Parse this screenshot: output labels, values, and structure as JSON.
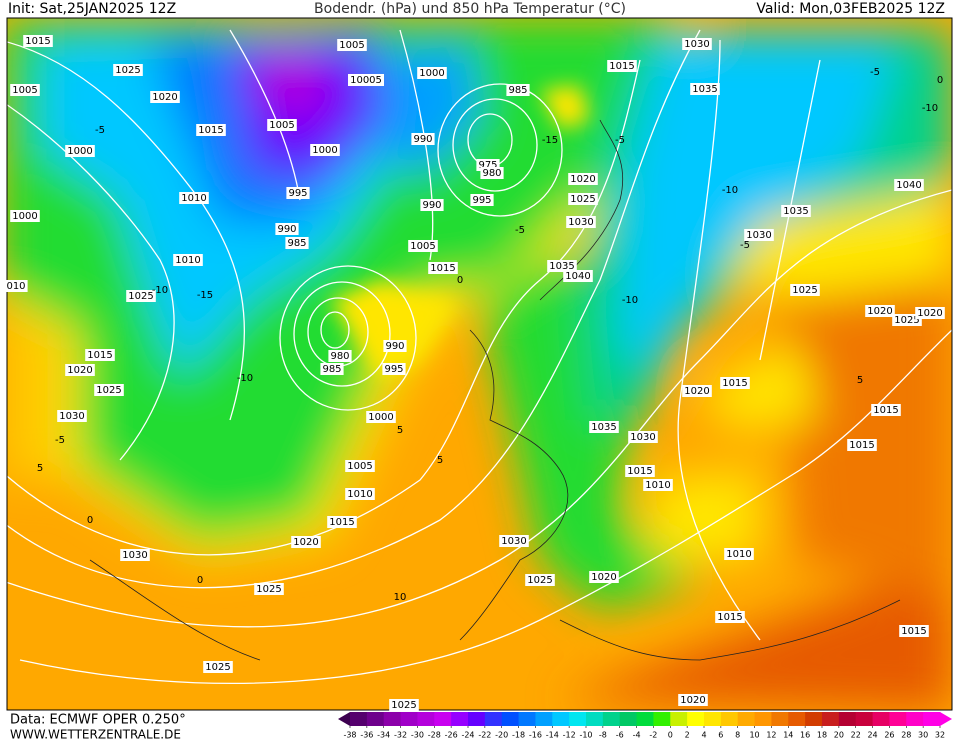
{
  "header": {
    "init": "Init: Sat,25JAN2025 12Z",
    "title": "Bodendr. (hPa) und 850 hPa Temperatur (°C)",
    "valid": "Valid: Mon,03FEB2025 12Z"
  },
  "footer": {
    "data": "Data: ECMWF OPER 0.250°",
    "site": "WWW.WETTERZENTRALE.DE"
  },
  "colorbar": {
    "ticks": [
      -38,
      -36,
      -34,
      -32,
      -30,
      -28,
      -26,
      -24,
      -22,
      -20,
      -18,
      -16,
      -14,
      -12,
      -10,
      -8,
      -6,
      -4,
      -2,
      0,
      2,
      4,
      6,
      8,
      10,
      12,
      14,
      16,
      18,
      20,
      22,
      24,
      26,
      28,
      30,
      32
    ],
    "colors": [
      "#3c0050",
      "#55006e",
      "#6e008c",
      "#8c00aa",
      "#a000c8",
      "#b400dc",
      "#c800f0",
      "#9600ff",
      "#6400ff",
      "#3232ff",
      "#0050ff",
      "#0078ff",
      "#00a0ff",
      "#00c8ff",
      "#00e6f0",
      "#00dcc0",
      "#00d28c",
      "#00c864",
      "#00dc3c",
      "#32f000",
      "#c8f000",
      "#ffff00",
      "#ffe600",
      "#ffc800",
      "#ffaa00",
      "#ff9600",
      "#f07800",
      "#e65a00",
      "#d23c00",
      "#c81e1e",
      "#b40032",
      "#c8003c",
      "#e60064",
      "#ff0096",
      "#ff00c8",
      "#ff00e6"
    ]
  },
  "pressure_labels": [
    "1015",
    "1025",
    "1005",
    "1020",
    "1015",
    "1005",
    "1000",
    "1000",
    "1005",
    "10005",
    "1000",
    "990",
    "985",
    "975",
    "980",
    "990",
    "995",
    "995",
    "1010",
    "1000",
    "990",
    "985",
    "1005",
    "1015",
    "1010",
    "1025",
    "1015",
    "1020",
    "1025",
    "1030",
    "990",
    "995",
    "985",
    "980",
    "1000",
    "1005",
    "1010",
    "1015",
    "1020",
    "1030",
    "1025",
    "1025",
    "1025",
    "1030",
    "1025",
    "1020",
    "1015",
    "1010",
    "1010",
    "1015",
    "1030",
    "1035",
    "1020",
    "1015",
    "1025",
    "1020",
    "1025",
    "1020",
    "1015",
    "1015",
    "1015",
    "1020",
    "1030",
    "1035",
    "1040",
    "1035",
    "1030",
    "1015",
    "1020",
    "1025",
    "1030",
    "1035",
    "1040",
    "010"
  ],
  "temperature_labels": [
    "-5",
    "-10",
    "-15",
    "-10",
    "-5",
    "0",
    "5",
    "-5",
    "-10",
    "-15",
    "-10",
    "-5",
    "0",
    "5",
    "-5",
    "0",
    "5",
    "-10",
    "-5",
    "0",
    "5",
    "10"
  ]
}
